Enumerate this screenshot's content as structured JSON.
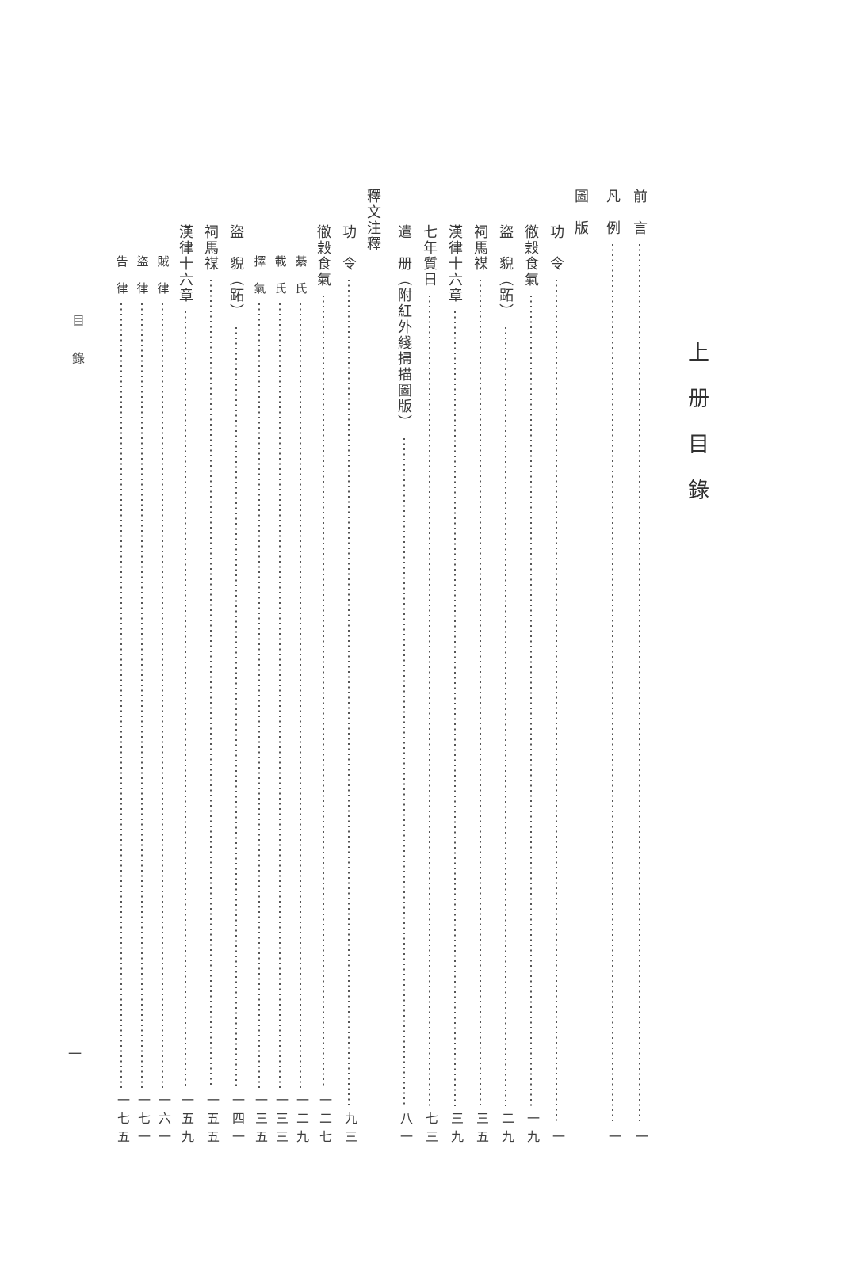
{
  "page": {
    "volume_title": "上册目錄",
    "running_header": "目錄",
    "folio": "一"
  },
  "toc": {
    "entries": [
      {
        "title": "前　言",
        "page": "一",
        "level": "top-level"
      },
      {
        "title": "凡　例",
        "page": "一",
        "level": "top-level"
      },
      {
        "title": "圖　版",
        "page": "",
        "level": "section-header"
      },
      {
        "title": "功　令",
        "page": "一",
        "level": "item"
      },
      {
        "title": "徹穀食氣",
        "page": "一九",
        "level": "item"
      },
      {
        "title": "盜　貎（跖）",
        "page": "二九",
        "level": "item"
      },
      {
        "title": "祠馬禖",
        "page": "三五",
        "level": "item"
      },
      {
        "title": "漢律十六章",
        "page": "三九",
        "level": "item"
      },
      {
        "title": "七年質日",
        "page": "七三",
        "level": "item"
      },
      {
        "title": "遣　册（附紅外綫掃描圖版）",
        "page": "八一",
        "level": "item"
      },
      {
        "title": "釋文注釋",
        "page": "",
        "level": "section-header"
      },
      {
        "title": "功　令",
        "page": "九三",
        "level": "item"
      },
      {
        "title": "徹穀食氣",
        "page": "一二七",
        "level": "item"
      },
      {
        "title": "綦　氏",
        "page": "一二九",
        "level": "subitem"
      },
      {
        "title": "載　氏",
        "page": "一三三",
        "level": "subitem"
      },
      {
        "title": "擇　氣",
        "page": "一三五",
        "level": "subitem"
      },
      {
        "title": "盜　貎（跖）",
        "page": "一四一",
        "level": "item"
      },
      {
        "title": "祠馬禖",
        "page": "一五五",
        "level": "item"
      },
      {
        "title": "漢律十六章",
        "page": "一五九",
        "level": "item"
      },
      {
        "title": "賊　律",
        "page": "一六一",
        "level": "subitem"
      },
      {
        "title": "盜　律",
        "page": "一七一",
        "level": "subitem"
      },
      {
        "title": "告　律",
        "page": "一七五",
        "level": "subitem"
      }
    ]
  }
}
